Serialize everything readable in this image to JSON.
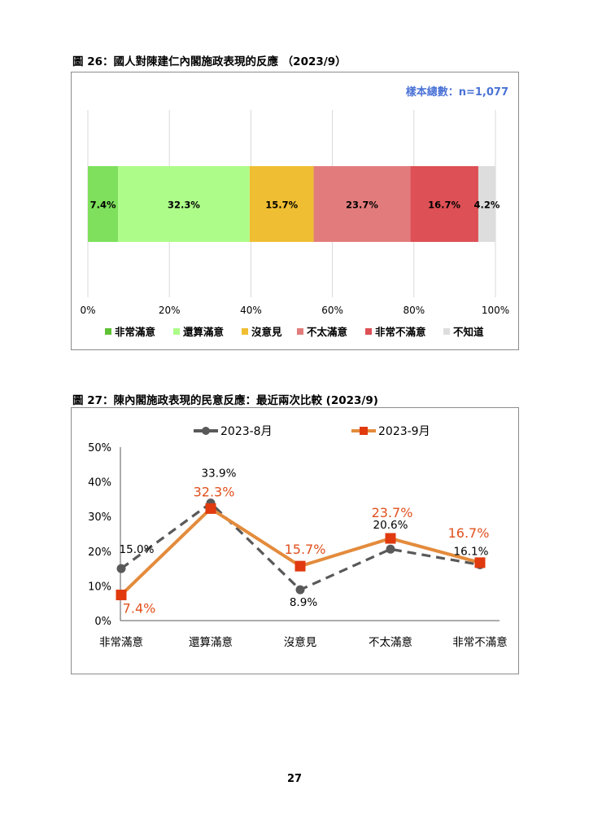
{
  "page_number": "27",
  "charts": {
    "fig26": {
      "title": "圖 26：國人對陳建仁內閣施政表現的反應 （2023/9）",
      "sample_note": "樣本總數：n=1,077"
    },
    "fig27": {
      "title": "圖 27：陳內閣施政表現的民意反應：最近兩次比較 (2023/9)"
    }
  },
  "colors": {
    "note_blue": "#4a72d6",
    "gray_series": "#595959",
    "orange_series": "#e38b3c",
    "marker_red": "#e03a0e",
    "label_red": "#e0501e"
  },
  "chart_data": [
    {
      "type": "bar",
      "orientation": "horizontal-stacked-100",
      "categories": [
        "非常滿意",
        "還算滿意",
        "沒意見",
        "不太滿意",
        "非常不滿意",
        "不知道"
      ],
      "values": [
        7.4,
        32.3,
        15.7,
        23.7,
        16.7,
        4.2
      ],
      "value_labels": [
        "7.4%",
        "32.3%",
        "15.7%",
        "23.7%",
        "16.7%",
        "4.2%"
      ],
      "colors": [
        "#7ee05c",
        "#adfc8a",
        "#f0be32",
        "#e27c7c",
        "#dd5055",
        "#dddddd"
      ],
      "legend_swatch_colors": [
        "#5fc234",
        "#adfc8a",
        "#f0be32",
        "#e27c7c",
        "#dd5055",
        "#dddddd"
      ],
      "xlim": [
        0,
        100
      ],
      "xticks": [
        "0%",
        "20%",
        "40%",
        "60%",
        "80%",
        "100%"
      ],
      "grid": true,
      "legend": "bottom"
    },
    {
      "type": "line",
      "categories": [
        "非常滿意",
        "還算滿意",
        "沒意見",
        "不太滿意",
        "非常不滿意"
      ],
      "ylim": [
        0,
        50
      ],
      "yticks": [
        "0%",
        "10%",
        "20%",
        "30%",
        "40%",
        "50%"
      ],
      "grid": false,
      "legend": "top",
      "series": [
        {
          "name": "2023-8月",
          "values": [
            15.0,
            33.9,
            8.9,
            20.6,
            16.1
          ],
          "labels": [
            "15.0%",
            "33.9%",
            "8.9%",
            "20.6%",
            "16.1%"
          ],
          "style": "dashed",
          "marker": "circle",
          "color": "#595959"
        },
        {
          "name": "2023-9月",
          "values": [
            7.4,
            32.3,
            15.7,
            23.7,
            16.7
          ],
          "labels": [
            "7.4%",
            "32.3%",
            "15.7%",
            "23.7%",
            "16.7%"
          ],
          "style": "solid",
          "marker": "square",
          "color": "#e38b3c"
        }
      ]
    }
  ]
}
